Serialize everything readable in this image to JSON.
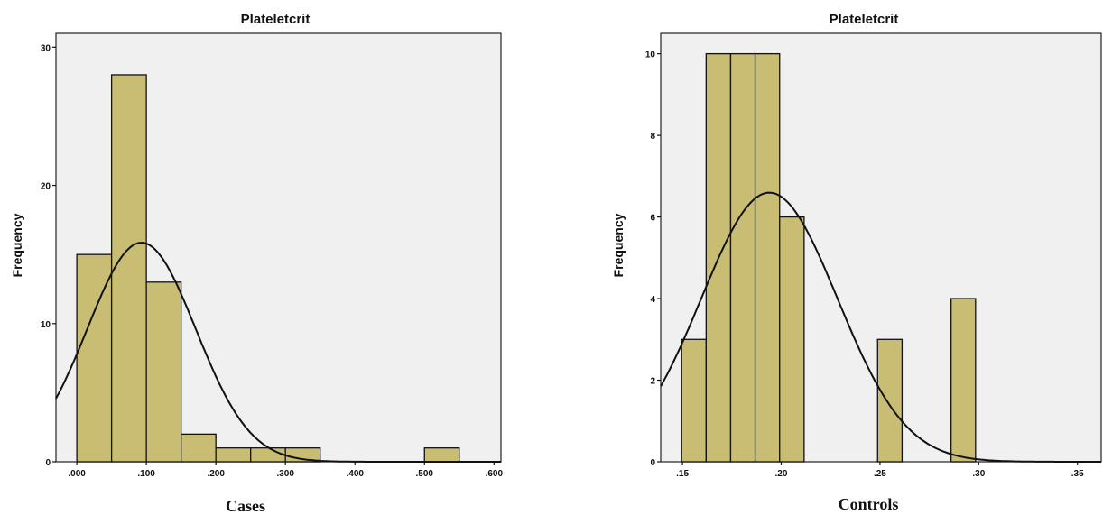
{
  "chart_data": [
    {
      "type": "bar",
      "subtype": "histogram",
      "title": "Plateletcrit",
      "xlabel": "Cases",
      "ylabel": "Frequency",
      "xlim": [
        -0.03,
        0.61
      ],
      "ylim": [
        0,
        31
      ],
      "xticks": [
        0.0,
        0.1,
        0.2,
        0.3,
        0.4,
        0.5,
        0.6
      ],
      "xtick_labels": [
        ".000",
        ".100",
        ".200",
        ".300",
        ".400",
        ".500",
        ".600"
      ],
      "yticks": [
        0,
        10,
        20,
        30
      ],
      "ytick_labels": [
        "0",
        "10",
        "20",
        "30"
      ],
      "bins": [
        {
          "x0": 0.0,
          "x1": 0.05,
          "count": 15
        },
        {
          "x0": 0.05,
          "x1": 0.1,
          "count": 28
        },
        {
          "x0": 0.1,
          "x1": 0.15,
          "count": 13
        },
        {
          "x0": 0.15,
          "x1": 0.2,
          "count": 2
        },
        {
          "x0": 0.2,
          "x1": 0.25,
          "count": 1
        },
        {
          "x0": 0.25,
          "x1": 0.3,
          "count": 1
        },
        {
          "x0": 0.3,
          "x1": 0.35,
          "count": 1
        },
        {
          "x0": 0.5,
          "x1": 0.55,
          "count": 1
        }
      ],
      "normal_curve": {
        "mean": 0.093,
        "sd": 0.078,
        "n": 62,
        "bin_width": 0.05
      },
      "bar_color": "#c8bd72",
      "grid": false
    },
    {
      "type": "bar",
      "subtype": "histogram",
      "title": "Plateletcrit",
      "xlabel": "Controls",
      "ylabel": "Frequency",
      "xlim": [
        0.139,
        0.362
      ],
      "ylim": [
        0,
        10.5
      ],
      "xticks": [
        0.15,
        0.2,
        0.25,
        0.3,
        0.35
      ],
      "xtick_labels": [
        ".15",
        ".20",
        ".25",
        ".30",
        ".35"
      ],
      "yticks": [
        0,
        2,
        4,
        6,
        8,
        10
      ],
      "ytick_labels": [
        "0",
        "2",
        "4",
        "6",
        "8",
        "10"
      ],
      "bins": [
        {
          "x0": 0.1496,
          "x1": 0.162,
          "count": 3
        },
        {
          "x0": 0.162,
          "x1": 0.1744,
          "count": 10
        },
        {
          "x0": 0.1744,
          "x1": 0.1868,
          "count": 10
        },
        {
          "x0": 0.1868,
          "x1": 0.1992,
          "count": 10
        },
        {
          "x0": 0.1992,
          "x1": 0.2116,
          "count": 6
        },
        {
          "x0": 0.2488,
          "x1": 0.2612,
          "count": 3
        },
        {
          "x0": 0.286,
          "x1": 0.2984,
          "count": 4
        }
      ],
      "normal_curve": {
        "mean": 0.194,
        "sd": 0.0345,
        "n": 46,
        "bin_width": 0.0124
      },
      "bar_color": "#c8bd72",
      "grid": false
    }
  ]
}
